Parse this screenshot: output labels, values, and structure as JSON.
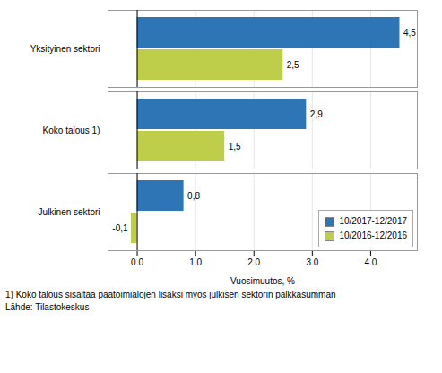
{
  "chart_data": {
    "type": "bar",
    "orientation": "horizontal",
    "categories": [
      "Julkinen sektori",
      "Koko talous 1)",
      "Yksityinen sektori"
    ],
    "series": [
      {
        "name": "10/2017-12/2017",
        "color": "#2E75B6",
        "values": [
          0.8,
          2.9,
          4.5
        ],
        "value_labels": [
          "0,8",
          "2,9",
          "4,5"
        ]
      },
      {
        "name": "10/2016-12/2016",
        "color": "#BFCE4A",
        "values": [
          -0.1,
          1.5,
          2.5
        ],
        "value_labels": [
          "-0,1",
          "1,5",
          "2,5"
        ]
      }
    ],
    "xlabel": "Vuosimuutos, %",
    "xlim": [
      -0.5,
      4.8
    ],
    "xticks": [
      0,
      1,
      2,
      3,
      4
    ],
    "grid": true,
    "legend": "lower right",
    "data_labels": true,
    "annotations": [
      "1) Koko talous sisältää päätoimialojen lisäksi myös julkisen sektorin palkkasumman",
      "Lähde: Tilastokeskus"
    ]
  }
}
